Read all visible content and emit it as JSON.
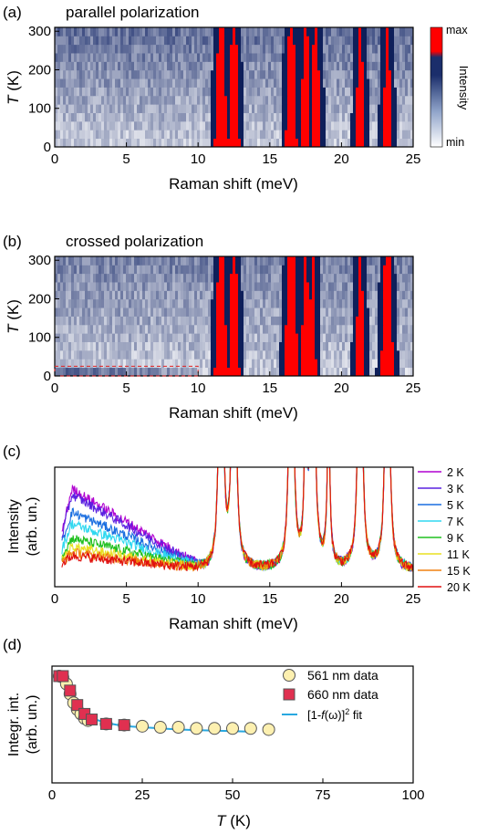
{
  "chart_data": [
    {
      "panel_label": "(a)",
      "type": "heatmap",
      "title": "parallel polarization",
      "xlabel": "Raman shift (meV)",
      "ylabel_italic": "T",
      "ylabel_unit": " (K)",
      "xlim": [
        0,
        25
      ],
      "ylim": [
        0,
        310
      ],
      "xticks": [
        "0",
        "5",
        "10",
        "15",
        "20",
        "25"
      ],
      "yticks": [
        "0",
        "100",
        "200",
        "300"
      ],
      "colorbar": {
        "label": "Intensity",
        "max_label": "max",
        "min_label": "min",
        "colors": [
          "#ffffff",
          "#8fa3c9",
          "#1b2e6b",
          "#ff0000"
        ]
      },
      "phonon_modes_meV": [
        11.6,
        12.5,
        16.5,
        17.5,
        18.2,
        21.3,
        23.2
      ],
      "phonon_widths_meV": [
        0.45,
        0.4,
        0.4,
        0.35,
        0.35,
        0.3,
        0.3
      ]
    },
    {
      "panel_label": "(b)",
      "type": "heatmap",
      "title": "crossed polarization",
      "xlabel": "Raman shift (meV)",
      "ylabel_italic": "T",
      "ylabel_unit": " (K)",
      "xlim": [
        0,
        25
      ],
      "ylim": [
        0,
        310
      ],
      "xticks": [
        "0",
        "5",
        "10",
        "15",
        "20",
        "25"
      ],
      "yticks": [
        "0",
        "100",
        "200",
        "300"
      ],
      "phonon_modes_meV": [
        11.6,
        12.5,
        16.5,
        17.5,
        18.0,
        21.3,
        23.2
      ],
      "phonon_widths_meV": [
        0.45,
        0.4,
        0.5,
        0.3,
        0.25,
        0.3,
        0.45
      ],
      "highlight_box": {
        "x": [
          0,
          10
        ],
        "y": [
          0,
          25
        ],
        "color": "#e02020"
      }
    },
    {
      "panel_label": "(c)",
      "type": "line",
      "xlabel": "Raman shift (meV)",
      "ylabel": "Intensity",
      "ylabel2": "(arb. un.)",
      "xlim": [
        0,
        25
      ],
      "xticks": [
        "0",
        "5",
        "10",
        "15",
        "20",
        "25"
      ],
      "phonon_modes_meV": [
        11.6,
        12.5,
        16.5,
        17.5,
        18.0,
        19.1,
        21.3,
        23.2
      ],
      "phonon_heights": [
        1.0,
        1.0,
        1.0,
        0.28,
        1.0,
        0.3,
        1.0,
        1.0
      ],
      "series": [
        {
          "name": "2 K",
          "color": "#b000d0",
          "continuum_amp": 0.28
        },
        {
          "name": "3 K",
          "color": "#5a20e0",
          "continuum_amp": 0.26
        },
        {
          "name": "5 K",
          "color": "#1a6ee0",
          "continuum_amp": 0.2
        },
        {
          "name": "7 K",
          "color": "#30d8f0",
          "continuum_amp": 0.16
        },
        {
          "name": "9 K",
          "color": "#20c020",
          "continuum_amp": 0.11
        },
        {
          "name": "11 K",
          "color": "#e8e020",
          "continuum_amp": 0.08
        },
        {
          "name": "15 K",
          "color": "#f08010",
          "continuum_amp": 0.06
        },
        {
          "name": "20 K",
          "color": "#e01010",
          "continuum_amp": 0.05
        }
      ]
    },
    {
      "panel_label": "(d)",
      "type": "scatter",
      "xlabel_italic": "T",
      "xlabel_unit": " (K)",
      "ylabel": "Integr. int.",
      "ylabel2": "(arb. un.)",
      "xlim": [
        0,
        100
      ],
      "ylim": [
        0,
        1.05
      ],
      "xticks": [
        "0",
        "25",
        "50",
        "75",
        "100"
      ],
      "series": [
        {
          "name": "561 nm data",
          "marker": "circle",
          "color": "#fdf0b0",
          "x": [
            2,
            3,
            4,
            5,
            6,
            7,
            8,
            9,
            10,
            15,
            20,
            25,
            30,
            35,
            40,
            45,
            50,
            55,
            60
          ],
          "y": [
            0.96,
            0.95,
            0.89,
            0.8,
            0.72,
            0.66,
            0.62,
            0.58,
            0.56,
            0.53,
            0.52,
            0.51,
            0.5,
            0.5,
            0.49,
            0.49,
            0.49,
            0.49,
            0.48
          ]
        },
        {
          "name": "660 nm data",
          "marker": "square",
          "color": "#e03050",
          "x": [
            2,
            3,
            5,
            7,
            9,
            11,
            15,
            20
          ],
          "y": [
            0.96,
            0.96,
            0.83,
            0.7,
            0.62,
            0.57,
            0.53,
            0.52
          ]
        }
      ],
      "fit": {
        "name_prefix": "[1-",
        "name_f": "f",
        "name_mid": "(ω)]",
        "name_sup": "2",
        "name_suffix": " fit",
        "color": "#28a8e0",
        "x": [
          2,
          4,
          6,
          8,
          10,
          12,
          15,
          20,
          25,
          30,
          35,
          40,
          45,
          50,
          55
        ],
        "y": [
          0.97,
          0.88,
          0.75,
          0.66,
          0.61,
          0.57,
          0.54,
          0.51,
          0.5,
          0.49,
          0.48,
          0.475,
          0.47,
          0.465,
          0.46
        ]
      }
    }
  ]
}
